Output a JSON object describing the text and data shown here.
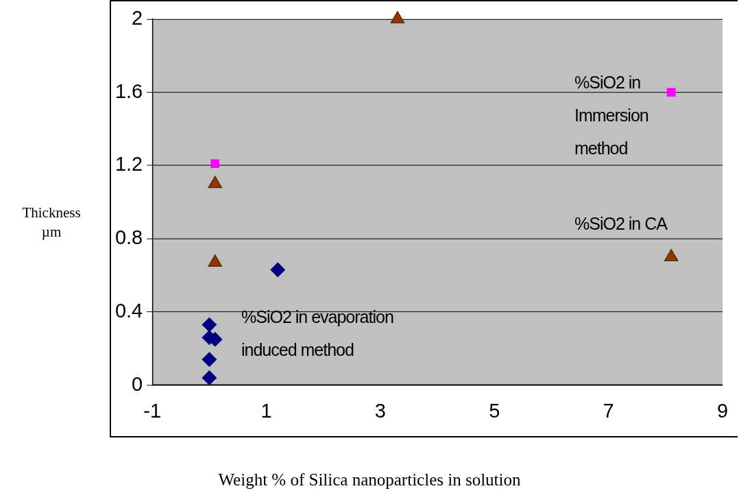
{
  "chart_data": {
    "type": "scatter",
    "xlabel": "Weight % of Silica nanoparticles in solution",
    "ylabel": "Thickness\nµm",
    "xlim": [
      -1,
      9
    ],
    "xticks": [
      -1,
      1,
      3,
      5,
      7,
      9
    ],
    "ylim": [
      0,
      2
    ],
    "yticks": [
      0,
      0.4,
      0.8,
      1.2,
      1.6,
      2
    ],
    "grid": "y",
    "legend": false,
    "series": [
      {
        "name": "%SiO2 in evaporation induced method",
        "color": "#000080",
        "marker": "diamond",
        "x": [
          0,
          0,
          0.1,
          0,
          0,
          1.2
        ],
        "values": [
          0.33,
          0.26,
          0.25,
          0.14,
          0.04,
          0.63
        ]
      },
      {
        "name": "%SiO2 in CA",
        "color": "#993300",
        "marker": "triangle",
        "x": [
          3.3,
          0.1,
          0.1,
          8.1
        ],
        "values": [
          2.0,
          1.1,
          0.67,
          0.7
        ]
      },
      {
        "name": "%SiO2 in Immersion method",
        "color": "#ff00ff",
        "marker": "square",
        "x": [
          0.1,
          8.1
        ],
        "values": [
          1.21,
          1.6
        ]
      }
    ]
  }
}
